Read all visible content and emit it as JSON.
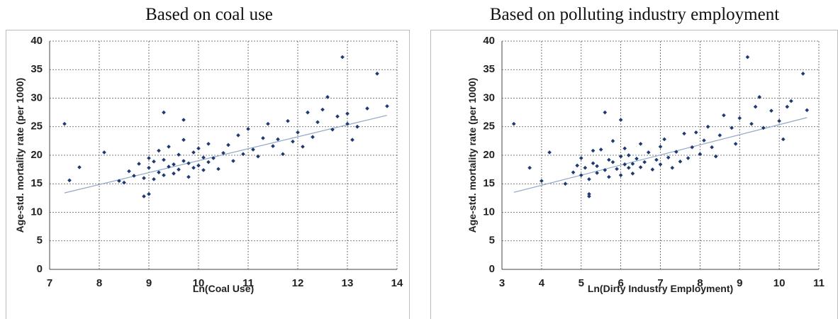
{
  "chart_data": [
    {
      "type": "scatter",
      "title": "Based on coal use",
      "xlabel": "Ln(Coal Use)",
      "ylabel": "Age-std. mortality rate (per 1000)",
      "xlim": [
        7,
        14
      ],
      "xticks": [
        7,
        8,
        9,
        10,
        11,
        12,
        13,
        14
      ],
      "ylim": [
        0,
        40
      ],
      "yticks": [
        0,
        5,
        10,
        15,
        20,
        25,
        30,
        35,
        40
      ],
      "grid": true,
      "color": "#1f3a73",
      "x": [
        8.4,
        8.6,
        8.7,
        8.8,
        8.9,
        9.0,
        9.0,
        9.1,
        9.1,
        9.2,
        9.2,
        9.3,
        9.3,
        9.4,
        9.4,
        9.5,
        9.5,
        9.6,
        9.6,
        9.7,
        9.7,
        9.8,
        9.8,
        9.9,
        9.9,
        10.0,
        10.0,
        10.1,
        10.1,
        10.2,
        10.2,
        10.3,
        10.4,
        10.5,
        10.6,
        10.7,
        10.8,
        10.9,
        11.0,
        11.1,
        11.2,
        11.3,
        11.4,
        11.5,
        11.6,
        11.7,
        11.8,
        11.9,
        12.0,
        12.1,
        12.2,
        12.3,
        12.4,
        12.5,
        12.7,
        12.8,
        13.0,
        13.2,
        13.4,
        7.3,
        7.4,
        7.6,
        8.1,
        8.5,
        8.9,
        9.0,
        9.3,
        9.7,
        12.9,
        13.6,
        13.8,
        13.1,
        12.6,
        13.0
      ],
      "values": [
        15.5,
        17.2,
        16.4,
        18.5,
        16.0,
        17.8,
        19.5,
        15.8,
        18.9,
        17.0,
        20.8,
        16.5,
        19.2,
        18.0,
        21.5,
        16.8,
        18.4,
        17.5,
        20.1,
        19.0,
        22.7,
        16.2,
        18.6,
        17.8,
        20.5,
        18.2,
        21.2,
        17.4,
        19.6,
        18.8,
        22.0,
        19.5,
        17.6,
        20.4,
        21.8,
        19.0,
        23.5,
        20.2,
        24.6,
        21.0,
        19.8,
        23.0,
        25.5,
        21.6,
        22.8,
        20.2,
        26.0,
        22.4,
        24.0,
        21.5,
        27.5,
        23.2,
        25.8,
        28.0,
        24.5,
        26.8,
        27.3,
        25.0,
        28.2,
        25.5,
        15.6,
        17.9,
        20.5,
        15.2,
        12.8,
        13.2,
        27.5,
        26.2,
        37.2,
        34.3,
        28.6,
        22.7,
        30.2,
        25.5
      ],
      "trendline": {
        "x": [
          7.3,
          13.8
        ],
        "values": [
          13.4,
          27.0
        ],
        "color": "#8fa8c8"
      }
    },
    {
      "type": "scatter",
      "title": "Based on polluting industry employment",
      "xlabel": "Ln(Dirty Industry Employment)",
      "ylabel": "Age-std. mortality rate (per 1000)",
      "xlim": [
        3,
        11
      ],
      "xticks": [
        3,
        4,
        5,
        6,
        7,
        8,
        9,
        10,
        11
      ],
      "ylim": [
        0,
        40
      ],
      "yticks": [
        0,
        5,
        10,
        15,
        20,
        25,
        30,
        35,
        40
      ],
      "grid": true,
      "color": "#1f3a73",
      "x": [
        4.8,
        4.9,
        5.0,
        5.0,
        5.1,
        5.2,
        5.3,
        5.3,
        5.4,
        5.4,
        5.5,
        5.6,
        5.7,
        5.7,
        5.8,
        5.8,
        5.9,
        6.0,
        6.0,
        6.1,
        6.1,
        6.2,
        6.2,
        6.3,
        6.3,
        6.4,
        6.5,
        6.5,
        6.6,
        6.7,
        6.8,
        6.9,
        7.0,
        7.0,
        7.1,
        7.2,
        7.3,
        7.4,
        7.5,
        7.6,
        7.7,
        7.8,
        7.9,
        8.0,
        8.1,
        8.2,
        8.3,
        8.4,
        8.5,
        8.6,
        8.8,
        8.9,
        9.0,
        9.3,
        9.4,
        9.6,
        9.8,
        10.0,
        10.2,
        3.3,
        3.7,
        4.0,
        4.2,
        5.2,
        5.2,
        5.6,
        6.0,
        9.2,
        10.6,
        10.7,
        10.1,
        9.5,
        10.3,
        4.6
      ],
      "values": [
        17.0,
        18.2,
        16.5,
        19.5,
        17.8,
        15.8,
        18.6,
        20.8,
        16.9,
        18.1,
        21.0,
        17.4,
        19.2,
        16.2,
        18.8,
        22.5,
        17.6,
        19.8,
        16.5,
        18.4,
        21.2,
        17.8,
        20.0,
        18.5,
        16.8,
        19.4,
        22.0,
        17.9,
        18.8,
        20.5,
        17.5,
        19.2,
        21.5,
        18.4,
        22.8,
        19.6,
        17.8,
        20.6,
        18.9,
        23.8,
        19.5,
        21.4,
        24.0,
        20.2,
        22.6,
        25.0,
        21.4,
        19.8,
        23.5,
        27.0,
        24.8,
        22.0,
        26.5,
        25.5,
        28.5,
        24.8,
        27.8,
        26.0,
        28.5,
        25.5,
        17.8,
        15.5,
        20.5,
        12.8,
        13.2,
        27.5,
        26.2,
        37.2,
        34.3,
        27.9,
        22.8,
        30.2,
        29.5,
        15.0
      ],
      "trendline": {
        "x": [
          3.3,
          10.7
        ],
        "values": [
          13.5,
          26.6
        ],
        "color": "#8fa8c8"
      }
    }
  ]
}
